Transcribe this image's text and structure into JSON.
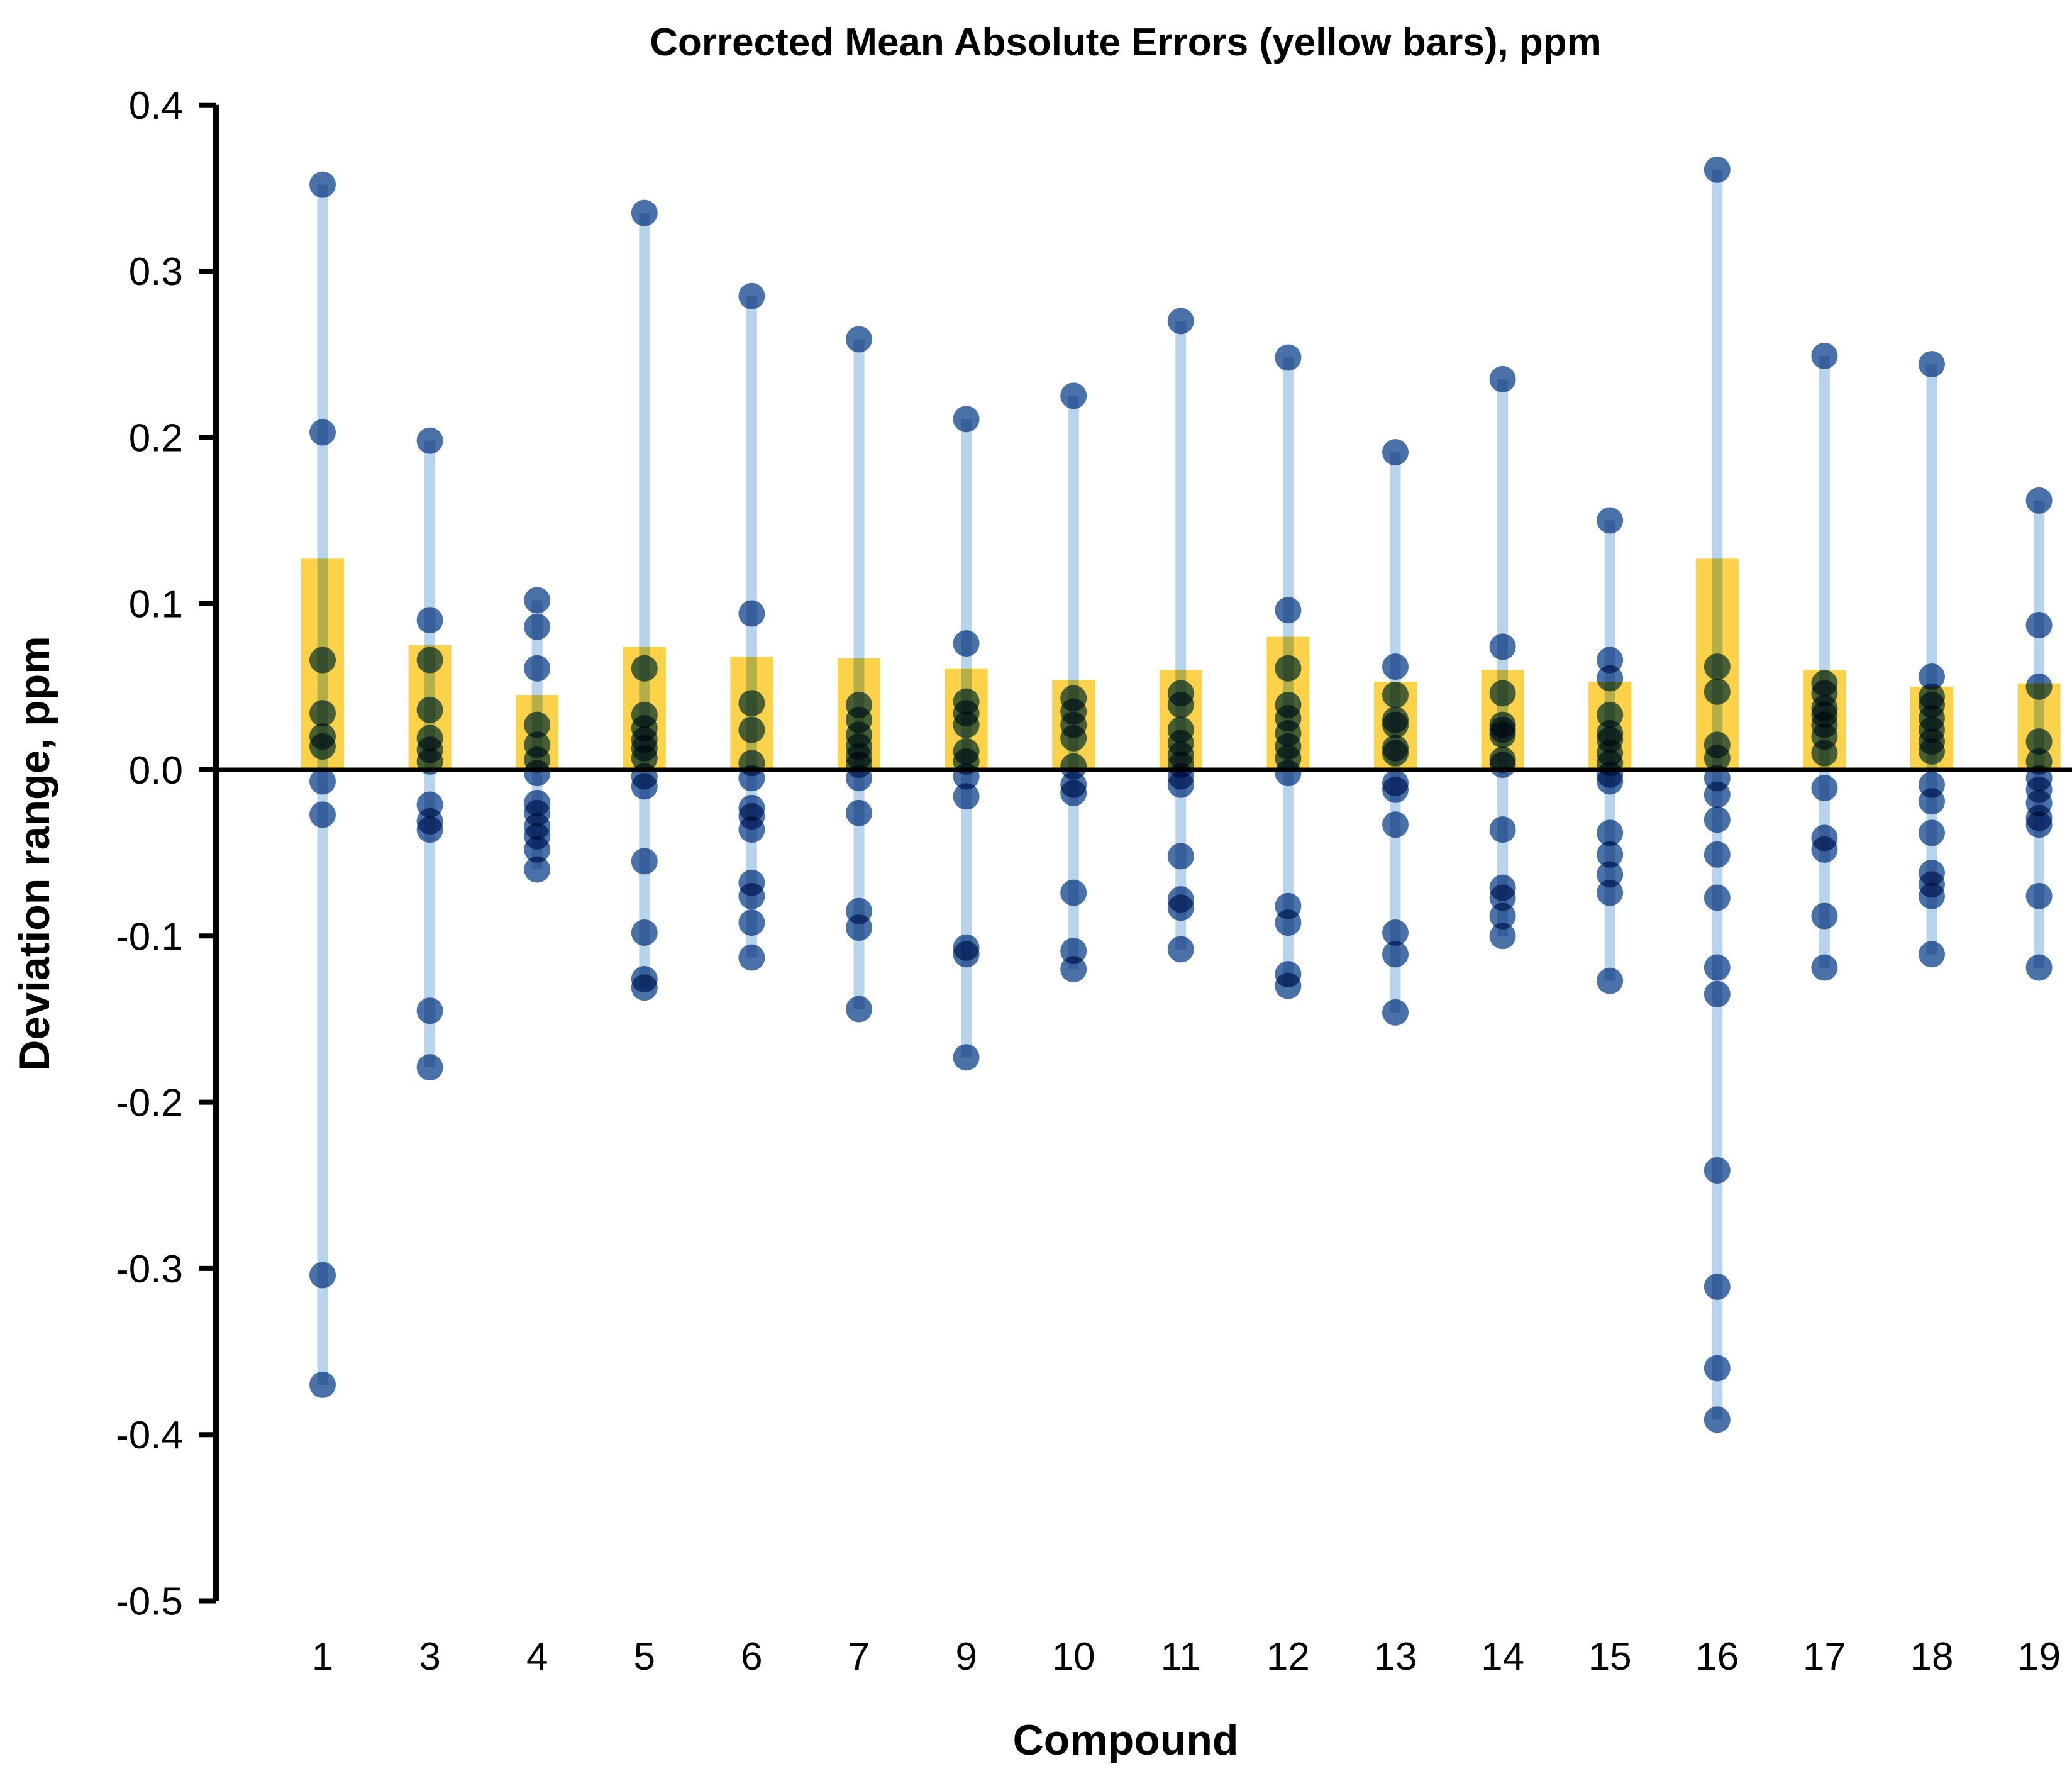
{
  "chart_data": {
    "type": "bar",
    "subtype": "bar-with-scatter-range-overlay",
    "title": "Corrected Mean Absolute Errors (yellow bars), ppm",
    "xlabel": "Compound",
    "ylabel": "Deviation range, ppm",
    "ylim": [
      -0.5,
      0.4
    ],
    "ytick_step": 0.1,
    "ytick_labels": [
      "0.4",
      "0.3",
      "0.2",
      "0.1",
      "0.0",
      "-0.1",
      "-0.2",
      "-0.3",
      "-0.4",
      "-0.5"
    ],
    "grid": false,
    "legend": "none",
    "categories": [
      "1",
      "3",
      "4",
      "5",
      "6",
      "7",
      "9",
      "10",
      "11",
      "12",
      "13",
      "14",
      "15",
      "16",
      "17",
      "18",
      "19"
    ],
    "series": [
      {
        "name": "Corrected Mean Absolute Error (bar height, ppm)",
        "values": [
          0.127,
          0.075,
          0.045,
          0.074,
          0.068,
          0.067,
          0.061,
          0.054,
          0.06,
          0.08,
          0.053,
          0.06,
          0.053,
          0.127,
          0.06,
          0.05,
          0.052
        ]
      }
    ],
    "scatter_points_ppm": [
      [
        0.352,
        0.203,
        0.066,
        0.034,
        0.02,
        0.014,
        -0.007,
        -0.027,
        -0.304,
        -0.37
      ],
      [
        0.198,
        0.09,
        0.066,
        0.036,
        0.019,
        0.012,
        0.005,
        -0.021,
        -0.031,
        -0.036,
        -0.145,
        -0.179
      ],
      [
        0.102,
        0.086,
        0.061,
        0.027,
        0.015,
        0.006,
        -0.002,
        -0.02,
        -0.026,
        -0.034,
        -0.04,
        -0.048,
        -0.06
      ],
      [
        0.335,
        0.061,
        0.033,
        0.025,
        0.018,
        0.013,
        0.007,
        -0.004,
        -0.01,
        -0.055,
        -0.098,
        -0.126,
        -0.131
      ],
      [
        0.285,
        0.094,
        0.04,
        0.024,
        0.004,
        -0.005,
        -0.023,
        -0.028,
        -0.036,
        -0.068,
        -0.076,
        -0.092,
        -0.113
      ],
      [
        0.259,
        0.039,
        0.03,
        0.021,
        0.014,
        0.008,
        0.003,
        -0.005,
        -0.026,
        -0.085,
        -0.095,
        -0.144
      ],
      [
        0.211,
        0.076,
        0.041,
        0.034,
        0.027,
        0.011,
        0.005,
        -0.004,
        -0.016,
        -0.107,
        -0.111,
        -0.173
      ],
      [
        0.225,
        0.043,
        0.035,
        0.027,
        0.019,
        0.002,
        -0.009,
        -0.014,
        -0.074,
        -0.109,
        -0.12
      ],
      [
        0.27,
        0.046,
        0.039,
        0.024,
        0.016,
        0.009,
        0.003,
        -0.004,
        -0.009,
        -0.052,
        -0.078,
        -0.083,
        -0.108
      ],
      [
        0.248,
        0.096,
        0.061,
        0.039,
        0.031,
        0.022,
        0.014,
        0.007,
        -0.002,
        -0.082,
        -0.092,
        -0.123,
        -0.13
      ],
      [
        0.191,
        0.062,
        0.045,
        0.03,
        0.027,
        0.013,
        0.01,
        -0.008,
        -0.012,
        -0.033,
        -0.098,
        -0.111,
        -0.146
      ],
      [
        0.235,
        0.074,
        0.046,
        0.027,
        0.024,
        0.021,
        0.006,
        0.003,
        -0.036,
        -0.071,
        -0.077,
        -0.088,
        -0.1
      ],
      [
        0.15,
        0.066,
        0.055,
        0.033,
        0.022,
        0.018,
        0.01,
        0.004,
        -0.003,
        -0.007,
        -0.038,
        -0.051,
        -0.063,
        -0.074,
        -0.127
      ],
      [
        0.361,
        0.062,
        0.047,
        0.015,
        0.007,
        -0.005,
        -0.015,
        -0.03,
        -0.051,
        -0.077,
        -0.119,
        -0.135,
        -0.241,
        -0.311,
        -0.36,
        -0.391
      ],
      [
        0.249,
        0.052,
        0.046,
        0.037,
        0.033,
        0.027,
        0.02,
        0.01,
        -0.011,
        -0.041,
        -0.048,
        -0.088,
        -0.119
      ],
      [
        0.244,
        0.056,
        0.044,
        0.039,
        0.031,
        0.024,
        0.017,
        0.011,
        -0.009,
        -0.019,
        -0.038,
        -0.062,
        -0.069,
        -0.076,
        -0.111
      ],
      [
        0.162,
        0.087,
        0.05,
        0.017,
        0.005,
        -0.005,
        -0.012,
        -0.02,
        -0.029,
        -0.033,
        -0.076,
        -0.119
      ]
    ],
    "colors": {
      "bar_fill": "#FCD24B",
      "dot_fill": "#4A72A8",
      "range_line": "#B8D4EC",
      "axis": "#000000",
      "background": "#FFFFFF"
    }
  }
}
